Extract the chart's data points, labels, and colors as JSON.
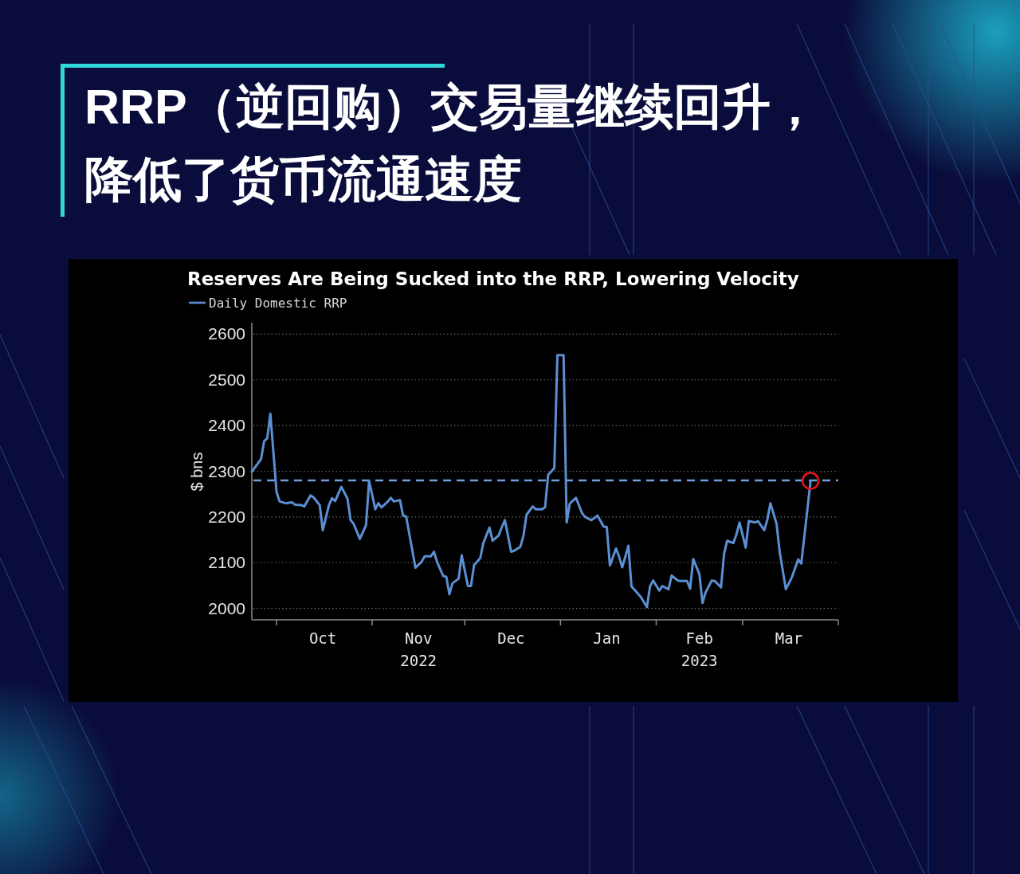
{
  "chart_data": {
    "type": "line",
    "title": "RRP（逆回购）交易量继续回升，降低了货币流通速度",
    "subtitle": "Reserves Are Being Sucked into the RRP, Lowering Velocity",
    "ylabel": "$ bns",
    "xlim": [
      "2022-09-23",
      "2023-04-01"
    ],
    "xticks": [
      {
        "value": "2022-10-01",
        "label": null
      },
      {
        "value": "2022-10-16",
        "label": "Oct"
      },
      {
        "value": "2022-11-01",
        "label": null
      },
      {
        "value": "2022-11-16",
        "label": "Nov\n2022"
      },
      {
        "value": "2022-12-01",
        "label": null
      },
      {
        "value": "2022-12-16",
        "label": "Dec"
      },
      {
        "value": "2023-01-01",
        "label": null
      },
      {
        "value": "2023-01-16",
        "label": "Jan"
      },
      {
        "value": "2023-02-01",
        "label": null
      },
      {
        "value": "2023-02-15",
        "label": "Feb\n2023"
      },
      {
        "value": "2023-03-01",
        "label": null
      },
      {
        "value": "2023-03-16",
        "label": "Mar"
      },
      {
        "value": "2023-04-01",
        "label": null
      }
    ],
    "ylim": [
      1975,
      2625
    ],
    "yticks": [
      2000,
      2100,
      2200,
      2300,
      2400,
      2500,
      2600
    ],
    "grid": "y",
    "legend": "top left",
    "series": [
      {
        "name": "Daily Domestic RRP",
        "type": "line",
        "color": "#5b8fd3",
        "marker": "none",
        "line_style": "solid",
        "x": [
          "2022-09-23",
          "2022-09-26",
          "2022-09-27",
          "2022-09-28",
          "2022-09-29",
          "2022-10-01",
          "2022-10-02",
          "2022-10-04",
          "2022-10-06",
          "2022-10-07",
          "2022-10-09",
          "2022-10-10",
          "2022-10-12",
          "2022-10-13",
          "2022-10-15",
          "2022-10-16",
          "2022-10-18",
          "2022-10-19",
          "2022-10-20",
          "2022-10-22",
          "2022-10-24",
          "2022-10-25",
          "2022-10-26",
          "2022-10-28",
          "2022-10-30",
          "2022-10-31",
          "2022-11-02",
          "2022-11-03",
          "2022-11-04",
          "2022-11-06",
          "2022-11-07",
          "2022-11-08",
          "2022-11-10",
          "2022-11-11",
          "2022-11-12",
          "2022-11-15",
          "2022-11-17",
          "2022-11-18",
          "2022-11-20",
          "2022-11-21",
          "2022-11-22",
          "2022-11-24",
          "2022-11-25",
          "2022-11-26",
          "2022-11-27",
          "2022-11-29",
          "2022-11-30",
          "2022-12-02",
          "2022-12-03",
          "2022-12-04",
          "2022-12-06",
          "2022-12-07",
          "2022-12-09",
          "2022-12-10",
          "2022-12-12",
          "2022-12-13",
          "2022-12-14",
          "2022-12-16",
          "2022-12-17",
          "2022-12-19",
          "2022-12-20",
          "2022-12-21",
          "2022-12-23",
          "2022-12-24",
          "2022-12-26",
          "2022-12-27",
          "2022-12-28",
          "2022-12-30",
          "2022-12-31",
          "2023-01-02",
          "2023-01-03",
          "2023-01-04",
          "2023-01-06",
          "2023-01-08",
          "2023-01-09",
          "2023-01-11",
          "2023-01-12",
          "2023-01-13",
          "2023-01-15",
          "2023-01-16",
          "2023-01-17",
          "2023-01-19",
          "2023-01-20",
          "2023-01-21",
          "2023-01-23",
          "2023-01-24",
          "2023-01-26",
          "2023-01-27",
          "2023-01-29",
          "2023-01-30",
          "2023-01-31",
          "2023-02-02",
          "2023-02-03",
          "2023-02-05",
          "2023-02-06",
          "2023-02-08",
          "2023-02-09",
          "2023-02-11",
          "2023-02-12",
          "2023-02-13",
          "2023-02-15",
          "2023-02-16",
          "2023-02-17",
          "2023-02-19",
          "2023-02-20",
          "2023-02-22",
          "2023-02-23",
          "2023-02-24",
          "2023-02-26",
          "2023-02-27",
          "2023-02-28",
          "2023-03-02",
          "2023-03-03",
          "2023-03-05",
          "2023-03-06",
          "2023-03-08",
          "2023-03-09",
          "2023-03-10",
          "2023-03-12",
          "2023-03-13",
          "2023-03-15",
          "2023-03-16",
          "2023-03-17",
          "2023-03-19",
          "2023-03-20",
          "2023-03-23"
        ],
        "values": [
          2299,
          2327,
          2366,
          2372,
          2426,
          2255,
          2234,
          2230,
          2232,
          2227,
          2226,
          2223,
          2247,
          2243,
          2226,
          2171,
          2226,
          2241,
          2235,
          2266,
          2240,
          2193,
          2185,
          2152,
          2182,
          2279,
          2217,
          2230,
          2221,
          2233,
          2242,
          2234,
          2237,
          2203,
          2201,
          2089,
          2102,
          2114,
          2114,
          2124,
          2102,
          2071,
          2069,
          2031,
          2055,
          2065,
          2116,
          2049,
          2049,
          2095,
          2110,
          2143,
          2177,
          2148,
          2160,
          2178,
          2193,
          2124,
          2126,
          2135,
          2159,
          2205,
          2223,
          2217,
          2217,
          2221,
          2292,
          2307,
          2554,
          2554,
          2188,
          2229,
          2242,
          2208,
          2200,
          2193,
          2198,
          2203,
          2179,
          2178,
          2094,
          2131,
          2113,
          2090,
          2137,
          2048,
          2033,
          2025,
          2003,
          2048,
          2061,
          2039,
          2049,
          2042,
          2072,
          2061,
          2060,
          2060,
          2043,
          2108,
          2075,
          2012,
          2035,
          2061,
          2060,
          2046,
          2120,
          2148,
          2143,
          2162,
          2188,
          2133,
          2191,
          2188,
          2191,
          2171,
          2194,
          2230,
          2185,
          2124,
          2042,
          2055,
          2069,
          2107,
          2098,
          2278
        ]
      },
      {
        "type": "scatter",
        "color": "#e3141b",
        "marker": "circle",
        "x": [
          "2023-03-23"
        ],
        "values": [
          2279
        ]
      }
    ],
    "ref_lines": [
      {
        "axis": "y",
        "value": 2280,
        "color": "#6f9fdc",
        "line_style": "dashed"
      }
    ]
  }
}
